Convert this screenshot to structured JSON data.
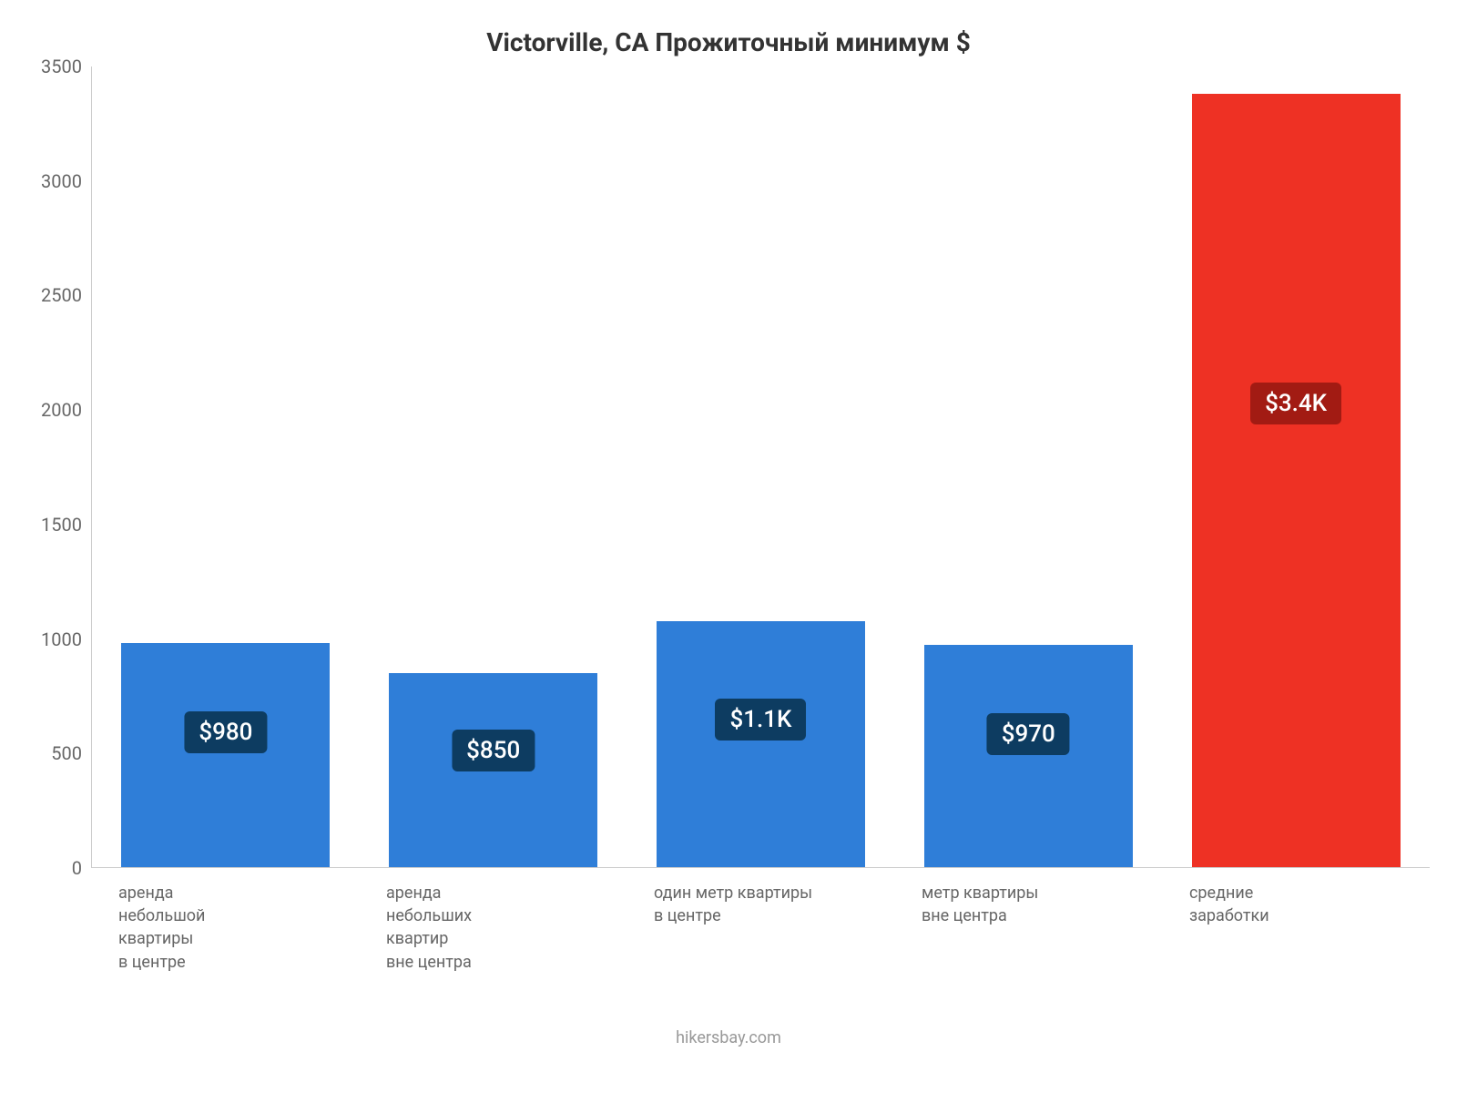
{
  "chart": {
    "type": "bar",
    "title": "Victorville, CA Прожиточный минимум $",
    "title_fontsize": 28,
    "title_color": "#333333",
    "background_color": "#ffffff",
    "axis_color": "#cccccc",
    "tick_color": "#666666",
    "tick_fontsize": 20,
    "xlabel_fontsize": 18,
    "xlabel_color": "#666666",
    "bar_width_ratio": 0.78,
    "badge_fontsize": 26,
    "badge_text_color": "#ffffff",
    "ylim": [
      0,
      3500
    ],
    "yticks": [
      0,
      500,
      1000,
      1500,
      2000,
      2500,
      3000,
      3500
    ],
    "bars": [
      {
        "category": "аренда\nнебольшой\nквартиры\nв центре",
        "value": 980,
        "display": "$980",
        "color": "#2f7ed8",
        "badge_bg": "#0d3c61"
      },
      {
        "category": "аренда\nнебольших\nквартир\nвне центра",
        "value": 850,
        "display": "$850",
        "color": "#2f7ed8",
        "badge_bg": "#0d3c61"
      },
      {
        "category": "один метр квартиры\nв центре",
        "value": 1075,
        "display": "$1.1K",
        "color": "#2f7ed8",
        "badge_bg": "#0d3c61"
      },
      {
        "category": "метр квартиры\nвне центра",
        "value": 970,
        "display": "$970",
        "color": "#2f7ed8",
        "badge_bg": "#0d3c61"
      },
      {
        "category": "средние\nзаработки",
        "value": 3380,
        "display": "$3.4K",
        "color": "#ee3124",
        "badge_bg": "#a21b13"
      }
    ],
    "footer": "hikersbay.com",
    "footer_color": "#999999",
    "footer_fontsize": 18
  }
}
